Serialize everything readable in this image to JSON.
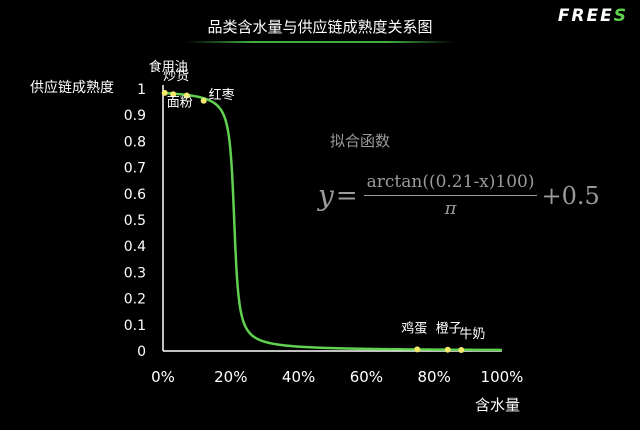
{
  "header": {
    "title": "品类含水量与供应链成熟度关系图",
    "logo_main": "FREE",
    "logo_accent": "S"
  },
  "formula": {
    "title": "拟合函数",
    "lhs": "y",
    "eq": "=",
    "numerator": "arctan((0.21-x)100)",
    "denominator": "π",
    "rhs": "+0.5"
  },
  "chart_data": {
    "type": "line",
    "title": "品类含水量与供应链成熟度关系图",
    "xlabel": "含水量",
    "ylabel": "供应链成熟度",
    "xlim": [
      0,
      1
    ],
    "ylim": [
      0,
      1
    ],
    "x_ticks": [
      "0%",
      "20%",
      "40%",
      "60%",
      "80%",
      "100%"
    ],
    "y_ticks": [
      "0",
      "0.1",
      "0.2",
      "0.3",
      "0.4",
      "0.5",
      "0.6",
      "0.7",
      "0.8",
      "0.9",
      "1"
    ],
    "grid": false,
    "series": [
      {
        "function": "arctan((0.21-x)*100)/pi+0.5",
        "color": "#5fd14f"
      }
    ],
    "points": [
      {
        "label": "食用油",
        "x": 0.005,
        "y": 0.985
      },
      {
        "label": "炒货",
        "x": 0.03,
        "y": 0.98
      },
      {
        "label": "面粉",
        "x": 0.07,
        "y": 0.975
      },
      {
        "label": "红枣",
        "x": 0.12,
        "y": 0.955
      },
      {
        "label": "鸡蛋",
        "x": 0.75,
        "y": 0.006
      },
      {
        "label": "橙子",
        "x": 0.84,
        "y": 0.005
      },
      {
        "label": "牛奶",
        "x": 0.88,
        "y": 0.004
      }
    ],
    "colors": {
      "line": "#5fd14f",
      "point": "#f2e86b",
      "axis": "#ffffff"
    }
  }
}
